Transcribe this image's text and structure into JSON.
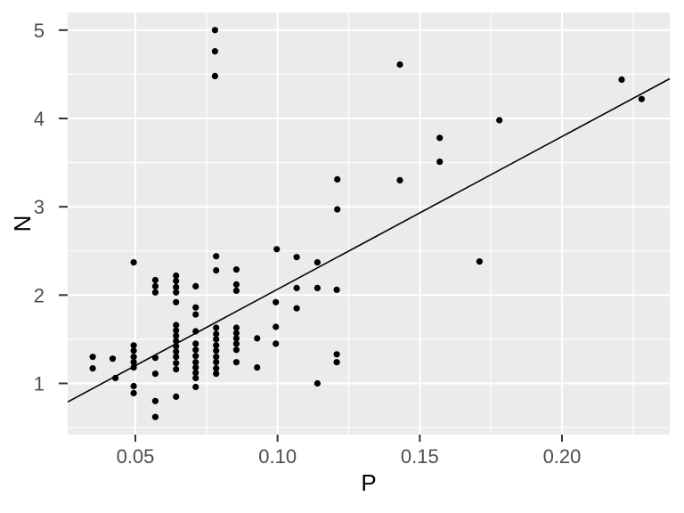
{
  "chart_data": {
    "type": "scatter",
    "title": "",
    "xlabel": "P",
    "ylabel": "N",
    "xlim": [
      0.0262,
      0.2379
    ],
    "ylim": [
      0.42,
      5.2
    ],
    "grid": "on",
    "legend": "none",
    "x_ticks": [
      {
        "value": 0.05,
        "label": "0.05"
      },
      {
        "value": 0.1,
        "label": "0.10"
      },
      {
        "value": 0.15,
        "label": "0.15"
      },
      {
        "value": 0.2,
        "label": "0.20"
      }
    ],
    "y_ticks": [
      {
        "value": 1,
        "label": "1"
      },
      {
        "value": 2,
        "label": "2"
      },
      {
        "value": 3,
        "label": "3"
      },
      {
        "value": 4,
        "label": "4"
      },
      {
        "value": 5,
        "label": "5"
      }
    ],
    "x_minor_ticks": [
      0.075,
      0.125,
      0.175,
      0.225
    ],
    "y_minor_ticks": [
      0.5,
      1.5,
      2.5,
      3.5,
      4.5
    ],
    "fit_line": {
      "x1": 0.0262,
      "y1": 0.79,
      "x2": 0.2379,
      "y2": 4.45
    },
    "points": [
      [
        0.078,
        5.0
      ],
      [
        0.078,
        4.76
      ],
      [
        0.078,
        4.48
      ],
      [
        0.143,
        4.61
      ],
      [
        0.221,
        4.44
      ],
      [
        0.228,
        4.22
      ],
      [
        0.178,
        3.98
      ],
      [
        0.157,
        3.78
      ],
      [
        0.157,
        3.51
      ],
      [
        0.143,
        3.3
      ],
      [
        0.121,
        3.31
      ],
      [
        0.121,
        2.97
      ],
      [
        0.171,
        2.38
      ],
      [
        0.0997,
        2.52
      ],
      [
        0.1067,
        2.43
      ],
      [
        0.114,
        2.37
      ],
      [
        0.1067,
        2.08
      ],
      [
        0.114,
        2.08
      ],
      [
        0.1208,
        2.06
      ],
      [
        0.1067,
        1.85
      ],
      [
        0.0994,
        1.92
      ],
      [
        0.0994,
        1.64
      ],
      [
        0.0994,
        1.45
      ],
      [
        0.114,
        1.0
      ],
      [
        0.1208,
        1.33
      ],
      [
        0.1208,
        1.24
      ],
      [
        0.0928,
        1.51
      ],
      [
        0.0928,
        1.18
      ],
      [
        0.0494,
        2.37
      ],
      [
        0.0494,
        1.43
      ],
      [
        0.0494,
        1.37
      ],
      [
        0.0494,
        1.3
      ],
      [
        0.0494,
        1.24
      ],
      [
        0.0494,
        1.18
      ],
      [
        0.0494,
        0.97
      ],
      [
        0.0494,
        0.89
      ],
      [
        0.057,
        2.17
      ],
      [
        0.057,
        2.1
      ],
      [
        0.057,
        2.03
      ],
      [
        0.057,
        1.29
      ],
      [
        0.057,
        1.11
      ],
      [
        0.057,
        0.8
      ],
      [
        0.057,
        0.62
      ],
      [
        0.0643,
        2.22
      ],
      [
        0.0643,
        2.16
      ],
      [
        0.0643,
        2.09
      ],
      [
        0.0643,
        2.03
      ],
      [
        0.0643,
        1.92
      ],
      [
        0.0643,
        1.66
      ],
      [
        0.0643,
        1.6
      ],
      [
        0.0643,
        1.54
      ],
      [
        0.0643,
        1.48
      ],
      [
        0.0643,
        1.42
      ],
      [
        0.0643,
        1.36
      ],
      [
        0.0643,
        1.3
      ],
      [
        0.0643,
        1.23
      ],
      [
        0.0643,
        1.16
      ],
      [
        0.0643,
        0.85
      ],
      [
        0.0712,
        2.1
      ],
      [
        0.0712,
        1.86
      ],
      [
        0.0712,
        1.78
      ],
      [
        0.0712,
        1.59
      ],
      [
        0.0712,
        1.45
      ],
      [
        0.0712,
        1.38
      ],
      [
        0.0712,
        1.31
      ],
      [
        0.0712,
        1.24
      ],
      [
        0.0712,
        1.18
      ],
      [
        0.0712,
        1.12
      ],
      [
        0.0712,
        1.06
      ],
      [
        0.0712,
        0.96
      ],
      [
        0.0784,
        2.44
      ],
      [
        0.0784,
        2.28
      ],
      [
        0.0784,
        1.63
      ],
      [
        0.0784,
        1.56
      ],
      [
        0.0784,
        1.5
      ],
      [
        0.0784,
        1.43
      ],
      [
        0.0784,
        1.37
      ],
      [
        0.0784,
        1.3
      ],
      [
        0.0784,
        1.24
      ],
      [
        0.0784,
        1.17
      ],
      [
        0.0784,
        1.11
      ],
      [
        0.0855,
        2.29
      ],
      [
        0.0855,
        2.12
      ],
      [
        0.0855,
        2.05
      ],
      [
        0.0855,
        1.63
      ],
      [
        0.0855,
        1.57
      ],
      [
        0.0855,
        1.51
      ],
      [
        0.0855,
        1.45
      ],
      [
        0.0855,
        1.38
      ],
      [
        0.0855,
        1.24
      ],
      [
        0.035,
        1.3
      ],
      [
        0.035,
        1.17
      ],
      [
        0.042,
        1.28
      ],
      [
        0.043,
        1.06
      ]
    ],
    "style": {
      "background": "#FFFFFF",
      "panel_bg": "#EBEBEB",
      "grid_color": "#FFFFFF",
      "point_color": "#000000",
      "line_color": "#000000",
      "tick_mark_color": "#333333",
      "tick_label_color": "#4D4D4D",
      "axis_title_color": "#000000"
    }
  }
}
